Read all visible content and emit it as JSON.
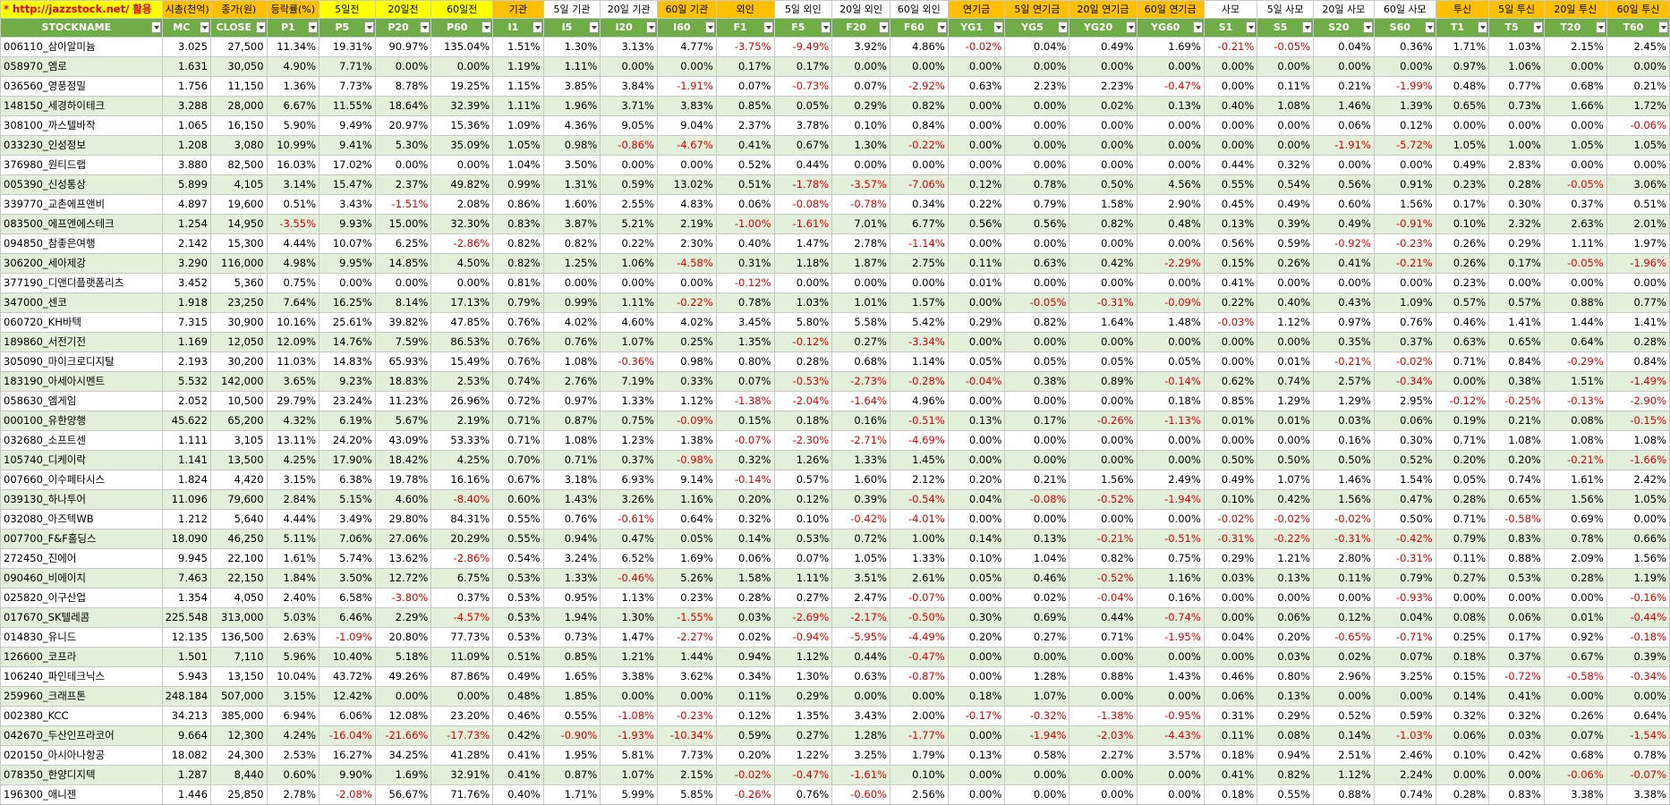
{
  "group_header": [
    "* http://jazzstock.net/ 활용",
    "시총(천억)",
    "종가(원)",
    "등락률(%)",
    "5일전",
    "20일전",
    "60일전",
    "기관",
    "5일 기관",
    "20일 기관",
    "60일 기관",
    "외인",
    "5일 외인",
    "20일 외인",
    "60일 외인",
    "연기금",
    "5일 연기금",
    "20일 연기금",
    "60일 연기금",
    "사모",
    "5일 사모",
    "20일 사모",
    "60일 사모",
    "투신",
    "5일 투신",
    "20일 투신",
    "60일 투신"
  ],
  "column_headers": [
    "STOCKNAME",
    "MC",
    "CLOSE",
    "P1",
    "P5",
    "P20",
    "P60",
    "I1",
    "I5",
    "I20",
    "I60",
    "F1",
    "F5",
    "F20",
    "F60",
    "YG1",
    "YG5",
    "YG20",
    "YG60",
    "S1",
    "S5",
    "S20",
    "S60",
    "T1",
    "T5",
    "T20",
    "T60"
  ],
  "rows": [
    [
      "006110_삼아알미늄",
      "3.025",
      "27,500",
      "11.34%",
      "19.31%",
      "90.97%",
      "135.04%",
      "1.51%",
      "1.30%",
      "3.13%",
      "4.77%",
      "-3.75%",
      "-9.49%",
      "3.92%",
      "4.86%",
      "-0.02%",
      "0.04%",
      "0.49%",
      "1.69%",
      "-0.21%",
      "-0.05%",
      "0.04%",
      "0.36%",
      "1.71%",
      "1.03%",
      "2.15%",
      "2.45%"
    ],
    [
      "058970_엠로",
      "1.631",
      "30,050",
      "4.90%",
      "7.71%",
      "0.00%",
      "0.00%",
      "1.19%",
      "1.11%",
      "0.00%",
      "0.00%",
      "0.17%",
      "0.17%",
      "0.00%",
      "0.00%",
      "0.00%",
      "0.00%",
      "0.00%",
      "0.00%",
      "0.00%",
      "0.00%",
      "0.00%",
      "0.00%",
      "0.97%",
      "1.06%",
      "0.00%",
      "0.00%"
    ],
    [
      "036560_영풍정밀",
      "1.756",
      "11,150",
      "1.36%",
      "7.73%",
      "8.78%",
      "19.25%",
      "1.15%",
      "3.85%",
      "3.84%",
      "-1.91%",
      "0.07%",
      "-0.73%",
      "0.07%",
      "-2.92%",
      "0.63%",
      "2.23%",
      "2.23%",
      "-0.47%",
      "0.00%",
      "0.11%",
      "0.21%",
      "-1.99%",
      "0.48%",
      "0.77%",
      "0.68%",
      "0.21%"
    ],
    [
      "148150_세경하이테크",
      "3.288",
      "28,000",
      "6.67%",
      "11.55%",
      "18.64%",
      "32.39%",
      "1.11%",
      "1.96%",
      "3.71%",
      "3.83%",
      "0.85%",
      "0.05%",
      "0.29%",
      "0.82%",
      "0.00%",
      "0.00%",
      "0.02%",
      "0.13%",
      "0.40%",
      "1.08%",
      "1.46%",
      "1.39%",
      "0.65%",
      "0.73%",
      "1.66%",
      "1.72%"
    ],
    [
      "308100_까스텔바작",
      "1.065",
      "16,150",
      "5.90%",
      "9.49%",
      "20.97%",
      "15.36%",
      "1.09%",
      "4.36%",
      "9.05%",
      "9.04%",
      "2.37%",
      "3.78%",
      "0.10%",
      "0.84%",
      "0.00%",
      "0.00%",
      "0.00%",
      "0.00%",
      "0.00%",
      "0.00%",
      "0.06%",
      "0.12%",
      "0.00%",
      "0.00%",
      "0.00%",
      "-0.06%"
    ],
    [
      "033230_인성정보",
      "1.208",
      "3,080",
      "10.99%",
      "9.41%",
      "5.30%",
      "35.09%",
      "1.05%",
      "0.98%",
      "-0.86%",
      "-4.67%",
      "0.41%",
      "0.67%",
      "1.30%",
      "-0.22%",
      "0.00%",
      "0.00%",
      "0.00%",
      "0.00%",
      "0.00%",
      "0.00%",
      "-1.91%",
      "-5.72%",
      "1.05%",
      "1.00%",
      "1.05%",
      "1.05%"
    ],
    [
      "376980_원티드랩",
      "3.880",
      "82,500",
      "16.03%",
      "17.02%",
      "0.00%",
      "0.00%",
      "1.04%",
      "3.50%",
      "0.00%",
      "0.00%",
      "0.52%",
      "0.44%",
      "0.00%",
      "0.00%",
      "0.00%",
      "0.00%",
      "0.00%",
      "0.00%",
      "0.44%",
      "0.32%",
      "0.00%",
      "0.00%",
      "0.49%",
      "2.83%",
      "0.00%",
      "0.00%"
    ],
    [
      "005390_신성통상",
      "5.899",
      "4,105",
      "3.14%",
      "15.47%",
      "2.37%",
      "49.82%",
      "0.99%",
      "1.31%",
      "0.59%",
      "13.02%",
      "0.51%",
      "-1.78%",
      "-3.57%",
      "-7.06%",
      "0.12%",
      "0.78%",
      "0.50%",
      "4.56%",
      "0.55%",
      "0.54%",
      "0.56%",
      "0.91%",
      "0.23%",
      "0.28%",
      "-0.05%",
      "3.06%"
    ],
    [
      "339770_교촌에프앤비",
      "4.897",
      "19,600",
      "0.51%",
      "3.43%",
      "-1.51%",
      "2.08%",
      "0.86%",
      "1.60%",
      "2.55%",
      "4.83%",
      "0.06%",
      "-0.08%",
      "-0.78%",
      "0.34%",
      "0.22%",
      "0.79%",
      "1.58%",
      "2.90%",
      "0.45%",
      "0.49%",
      "0.60%",
      "1.56%",
      "0.17%",
      "0.30%",
      "0.37%",
      "0.51%"
    ],
    [
      "083500_에프엔에스테크",
      "1.254",
      "14,950",
      "-3.55%",
      "9.93%",
      "15.00%",
      "32.30%",
      "0.83%",
      "3.87%",
      "5.21%",
      "2.19%",
      "-1.00%",
      "-1.61%",
      "7.01%",
      "6.77%",
      "0.56%",
      "0.56%",
      "0.82%",
      "0.48%",
      "0.13%",
      "0.39%",
      "0.49%",
      "-0.91%",
      "0.10%",
      "2.32%",
      "2.63%",
      "2.01%"
    ],
    [
      "094850_참좋은여행",
      "2.142",
      "15,300",
      "4.44%",
      "10.07%",
      "6.25%",
      "-2.86%",
      "0.82%",
      "0.82%",
      "0.22%",
      "2.30%",
      "0.40%",
      "1.47%",
      "2.78%",
      "-1.14%",
      "0.00%",
      "0.00%",
      "0.00%",
      "0.00%",
      "0.56%",
      "0.59%",
      "-0.92%",
      "-0.23%",
      "0.26%",
      "0.29%",
      "1.11%",
      "1.97%"
    ],
    [
      "306200_세아제강",
      "3.290",
      "116,000",
      "4.98%",
      "9.95%",
      "14.85%",
      "4.50%",
      "0.82%",
      "1.25%",
      "1.06%",
      "-4.58%",
      "0.31%",
      "1.18%",
      "1.87%",
      "2.75%",
      "0.11%",
      "0.63%",
      "0.42%",
      "-2.29%",
      "0.15%",
      "0.26%",
      "0.41%",
      "-0.21%",
      "0.26%",
      "0.17%",
      "-0.05%",
      "-1.96%"
    ],
    [
      "377190_디앤디플랫폼리츠",
      "3.452",
      "5,360",
      "0.75%",
      "0.00%",
      "0.00%",
      "0.00%",
      "0.81%",
      "0.00%",
      "0.00%",
      "0.00%",
      "-0.12%",
      "0.00%",
      "0.00%",
      "0.00%",
      "0.01%",
      "0.00%",
      "0.00%",
      "0.00%",
      "0.41%",
      "0.00%",
      "0.00%",
      "0.00%",
      "0.23%",
      "0.00%",
      "0.00%",
      "0.00%"
    ],
    [
      "347000_센코",
      "1.918",
      "23,250",
      "7.64%",
      "16.25%",
      "8.14%",
      "17.13%",
      "0.79%",
      "0.99%",
      "1.11%",
      "-0.22%",
      "0.78%",
      "1.03%",
      "1.01%",
      "1.57%",
      "0.00%",
      "-0.05%",
      "-0.31%",
      "-0.09%",
      "0.22%",
      "0.40%",
      "0.43%",
      "1.09%",
      "0.57%",
      "0.57%",
      "0.88%",
      "0.77%"
    ],
    [
      "060720_KH바텍",
      "7.315",
      "30,900",
      "10.16%",
      "25.61%",
      "39.82%",
      "47.85%",
      "0.76%",
      "4.02%",
      "4.60%",
      "4.02%",
      "3.45%",
      "5.80%",
      "5.58%",
      "5.42%",
      "0.29%",
      "0.82%",
      "1.64%",
      "1.48%",
      "-0.03%",
      "1.12%",
      "0.97%",
      "0.76%",
      "0.46%",
      "1.41%",
      "1.44%",
      "1.41%"
    ],
    [
      "189860_서전기전",
      "1.169",
      "12,050",
      "12.09%",
      "14.76%",
      "7.59%",
      "86.53%",
      "0.76%",
      "0.76%",
      "1.07%",
      "0.25%",
      "1.35%",
      "-0.12%",
      "0.27%",
      "-3.34%",
      "0.00%",
      "0.00%",
      "0.00%",
      "0.00%",
      "0.00%",
      "0.00%",
      "0.35%",
      "0.37%",
      "0.63%",
      "0.65%",
      "0.64%",
      "0.28%"
    ],
    [
      "305090_마이크로디지탈",
      "2.193",
      "30,200",
      "11.03%",
      "14.83%",
      "65.93%",
      "15.49%",
      "0.76%",
      "1.08%",
      "-0.36%",
      "0.98%",
      "0.80%",
      "0.28%",
      "0.68%",
      "1.14%",
      "0.05%",
      "0.05%",
      "0.05%",
      "0.05%",
      "0.00%",
      "0.01%",
      "-0.21%",
      "-0.02%",
      "0.71%",
      "0.84%",
      "-0.29%",
      "0.84%"
    ],
    [
      "183190_아세아시멘트",
      "5.532",
      "142,000",
      "3.65%",
      "9.23%",
      "18.83%",
      "2.53%",
      "0.74%",
      "2.76%",
      "7.19%",
      "0.33%",
      "0.07%",
      "-0.53%",
      "-2.73%",
      "-0.28%",
      "-0.04%",
      "0.38%",
      "0.89%",
      "-0.14%",
      "0.62%",
      "0.74%",
      "2.57%",
      "-0.34%",
      "0.00%",
      "0.38%",
      "1.51%",
      "-1.49%"
    ],
    [
      "058630_엠게임",
      "2.052",
      "10,500",
      "29.79%",
      "23.24%",
      "11.23%",
      "26.96%",
      "0.72%",
      "0.97%",
      "1.33%",
      "1.12%",
      "-1.38%",
      "-2.04%",
      "-1.64%",
      "4.96%",
      "0.00%",
      "0.00%",
      "0.00%",
      "0.18%",
      "0.85%",
      "1.29%",
      "1.29%",
      "2.95%",
      "-0.12%",
      "-0.25%",
      "-0.13%",
      "-2.90%"
    ],
    [
      "000100_유한양행",
      "45.622",
      "65,200",
      "4.32%",
      "6.19%",
      "5.67%",
      "2.19%",
      "0.71%",
      "0.87%",
      "0.75%",
      "-0.09%",
      "0.15%",
      "0.18%",
      "0.16%",
      "-0.51%",
      "0.13%",
      "0.17%",
      "-0.26%",
      "-1.13%",
      "0.01%",
      "0.01%",
      "0.03%",
      "0.06%",
      "0.19%",
      "0.21%",
      "0.08%",
      "-0.15%"
    ],
    [
      "032680_소프트센",
      "1.111",
      "3,105",
      "13.11%",
      "24.20%",
      "43.09%",
      "53.33%",
      "0.71%",
      "1.08%",
      "1.23%",
      "1.38%",
      "-0.07%",
      "-2.30%",
      "-2.71%",
      "-4.69%",
      "0.00%",
      "0.00%",
      "0.00%",
      "0.00%",
      "0.00%",
      "0.00%",
      "0.16%",
      "0.30%",
      "0.71%",
      "1.08%",
      "1.08%",
      "1.08%"
    ],
    [
      "105740_디케이락",
      "1.141",
      "13,500",
      "4.25%",
      "17.90%",
      "18.42%",
      "4.25%",
      "0.70%",
      "0.71%",
      "0.37%",
      "-0.98%",
      "0.32%",
      "1.26%",
      "1.33%",
      "1.45%",
      "0.00%",
      "0.00%",
      "0.00%",
      "0.00%",
      "0.50%",
      "0.50%",
      "0.50%",
      "0.52%",
      "0.20%",
      "0.20%",
      "-0.21%",
      "-1.66%"
    ],
    [
      "007660_이수페타시스",
      "1.824",
      "4,420",
      "3.15%",
      "6.38%",
      "19.78%",
      "16.16%",
      "0.67%",
      "3.18%",
      "6.93%",
      "9.14%",
      "-0.14%",
      "0.57%",
      "1.60%",
      "2.12%",
      "0.20%",
      "0.21%",
      "1.56%",
      "2.49%",
      "0.49%",
      "1.07%",
      "1.46%",
      "1.54%",
      "0.05%",
      "0.74%",
      "1.61%",
      "2.42%"
    ],
    [
      "039130_하나투어",
      "11.096",
      "79,600",
      "2.84%",
      "5.15%",
      "4.60%",
      "-8.40%",
      "0.60%",
      "1.43%",
      "3.26%",
      "1.16%",
      "0.20%",
      "0.12%",
      "0.39%",
      "-0.54%",
      "0.04%",
      "-0.08%",
      "-0.52%",
      "-1.94%",
      "0.10%",
      "0.42%",
      "1.56%",
      "0.47%",
      "0.28%",
      "0.65%",
      "1.56%",
      "1.05%"
    ],
    [
      "032080_아즈텍WB",
      "1.212",
      "5,640",
      "4.44%",
      "3.49%",
      "29.80%",
      "84.31%",
      "0.55%",
      "0.76%",
      "-0.61%",
      "0.64%",
      "0.32%",
      "0.10%",
      "-0.42%",
      "-4.01%",
      "0.00%",
      "0.00%",
      "0.00%",
      "0.00%",
      "-0.02%",
      "-0.02%",
      "-0.02%",
      "0.50%",
      "0.71%",
      "-0.58%",
      "0.69%",
      "0.00%"
    ],
    [
      "007700_F&F홀딩스",
      "18.090",
      "46,250",
      "5.11%",
      "7.06%",
      "27.06%",
      "20.29%",
      "0.55%",
      "0.94%",
      "0.47%",
      "0.05%",
      "0.14%",
      "0.53%",
      "0.72%",
      "1.00%",
      "0.14%",
      "0.13%",
      "-0.21%",
      "-0.51%",
      "-0.31%",
      "-0.22%",
      "-0.31%",
      "-0.42%",
      "0.79%",
      "0.83%",
      "0.78%",
      "0.66%"
    ],
    [
      "272450_진에어",
      "9.945",
      "22,100",
      "1.61%",
      "5.74%",
      "13.62%",
      "-2.86%",
      "0.54%",
      "3.24%",
      "6.52%",
      "1.69%",
      "0.06%",
      "0.07%",
      "1.05%",
      "1.33%",
      "0.10%",
      "1.04%",
      "0.82%",
      "0.75%",
      "0.29%",
      "1.21%",
      "2.80%",
      "-0.31%",
      "0.11%",
      "0.88%",
      "2.09%",
      "1.56%"
    ],
    [
      "090460_비에이치",
      "7.463",
      "22,150",
      "1.84%",
      "3.50%",
      "12.72%",
      "6.75%",
      "0.53%",
      "1.33%",
      "-0.46%",
      "5.26%",
      "1.58%",
      "1.11%",
      "3.51%",
      "2.61%",
      "0.05%",
      "0.46%",
      "-0.52%",
      "1.16%",
      "0.03%",
      "0.13%",
      "0.11%",
      "0.79%",
      "0.27%",
      "0.53%",
      "0.28%",
      "1.19%"
    ],
    [
      "025820_이구산업",
      "1.354",
      "4,050",
      "2.40%",
      "6.58%",
      "-3.80%",
      "0.37%",
      "0.53%",
      "0.95%",
      "1.13%",
      "0.23%",
      "0.28%",
      "0.27%",
      "2.47%",
      "-0.07%",
      "0.00%",
      "0.02%",
      "-0.04%",
      "0.16%",
      "0.00%",
      "0.00%",
      "0.00%",
      "-0.93%",
      "0.00%",
      "0.00%",
      "0.00%",
      "-0.16%"
    ],
    [
      "017670_SK텔레콤",
      "225.548",
      "313,000",
      "5.03%",
      "6.46%",
      "2.29%",
      "-4.57%",
      "0.53%",
      "1.94%",
      "1.30%",
      "-1.55%",
      "0.03%",
      "-2.69%",
      "-2.17%",
      "-0.50%",
      "0.30%",
      "0.69%",
      "0.44%",
      "-0.74%",
      "0.00%",
      "0.06%",
      "0.12%",
      "0.04%",
      "0.08%",
      "0.06%",
      "0.01%",
      "-0.44%"
    ],
    [
      "014830_유니드",
      "12.135",
      "136,500",
      "2.63%",
      "-1.09%",
      "20.80%",
      "77.73%",
      "0.53%",
      "0.73%",
      "1.47%",
      "-2.27%",
      "0.02%",
      "-0.94%",
      "-5.95%",
      "-4.49%",
      "0.20%",
      "0.27%",
      "0.71%",
      "-1.95%",
      "0.04%",
      "0.20%",
      "-0.65%",
      "-0.71%",
      "0.25%",
      "0.17%",
      "0.92%",
      "-0.18%"
    ],
    [
      "126600_코프라",
      "1.501",
      "7,110",
      "5.96%",
      "10.40%",
      "5.18%",
      "11.09%",
      "0.51%",
      "0.85%",
      "1.21%",
      "1.44%",
      "0.94%",
      "1.12%",
      "0.44%",
      "-0.47%",
      "0.00%",
      "0.00%",
      "0.00%",
      "0.00%",
      "0.00%",
      "0.03%",
      "0.02%",
      "0.07%",
      "0.18%",
      "0.37%",
      "0.67%",
      "0.39%"
    ],
    [
      "106240_파인테크닉스",
      "5.943",
      "13,150",
      "10.04%",
      "43.72%",
      "49.26%",
      "87.86%",
      "0.49%",
      "1.65%",
      "3.38%",
      "3.62%",
      "0.34%",
      "1.30%",
      "0.63%",
      "-0.87%",
      "0.00%",
      "1.28%",
      "0.88%",
      "1.43%",
      "0.46%",
      "0.80%",
      "2.96%",
      "3.25%",
      "0.15%",
      "-0.72%",
      "-0.58%",
      "-0.34%"
    ],
    [
      "259960_크래프톤",
      "248.184",
      "507,000",
      "3.15%",
      "12.42%",
      "0.00%",
      "0.00%",
      "0.48%",
      "1.85%",
      "0.00%",
      "0.00%",
      "0.11%",
      "0.29%",
      "0.00%",
      "0.00%",
      "0.18%",
      "1.07%",
      "0.00%",
      "0.00%",
      "0.06%",
      "0.13%",
      "0.00%",
      "0.00%",
      "0.14%",
      "0.41%",
      "0.00%",
      "0.00%"
    ],
    [
      "002380_KCC",
      "34.213",
      "385,000",
      "6.94%",
      "6.06%",
      "12.08%",
      "23.20%",
      "0.46%",
      "0.55%",
      "-1.08%",
      "-0.23%",
      "0.12%",
      "1.35%",
      "3.43%",
      "2.00%",
      "-0.17%",
      "-0.32%",
      "-1.38%",
      "-0.95%",
      "0.31%",
      "0.29%",
      "0.52%",
      "0.59%",
      "0.32%",
      "0.32%",
      "0.26%",
      "0.64%"
    ],
    [
      "042670_두산인프라코어",
      "9.664",
      "12,300",
      "4.24%",
      "-16.04%",
      "-21.66%",
      "-17.73%",
      "0.42%",
      "-0.90%",
      "-1.93%",
      "-10.34%",
      "0.59%",
      "0.27%",
      "1.28%",
      "-1.77%",
      "0.00%",
      "-1.94%",
      "-2.03%",
      "-4.43%",
      "0.11%",
      "0.08%",
      "0.14%",
      "-1.03%",
      "0.06%",
      "0.03%",
      "0.07%",
      "-1.54%"
    ],
    [
      "020150_아시아나항공",
      "18.082",
      "24,300",
      "2.53%",
      "16.27%",
      "34.25%",
      "41.28%",
      "0.41%",
      "1.95%",
      "5.81%",
      "7.73%",
      "0.20%",
      "1.22%",
      "3.25%",
      "1.79%",
      "0.13%",
      "0.58%",
      "2.27%",
      "3.57%",
      "0.18%",
      "0.94%",
      "2.51%",
      "2.46%",
      "0.10%",
      "0.42%",
      "0.68%",
      "0.78%"
    ],
    [
      "078350_한양디지텍",
      "1.287",
      "8,440",
      "0.60%",
      "9.90%",
      "1.69%",
      "32.91%",
      "0.41%",
      "0.87%",
      "1.07%",
      "2.15%",
      "-0.02%",
      "-0.47%",
      "-1.61%",
      "0.10%",
      "0.00%",
      "0.00%",
      "0.00%",
      "0.00%",
      "0.41%",
      "0.82%",
      "1.12%",
      "2.24%",
      "0.00%",
      "0.00%",
      "-0.06%",
      "-0.07%"
    ],
    [
      "196300_애니젠",
      "1.446",
      "25,850",
      "2.78%",
      "-2.08%",
      "56.67%",
      "71.76%",
      "0.40%",
      "1.71%",
      "5.99%",
      "5.85%",
      "-0.26%",
      "0.76%",
      "-0.60%",
      "2.56%",
      "0.00%",
      "0.00%",
      "0.00%",
      "0.00%",
      "0.18%",
      "0.55%",
      "0.88%",
      "0.74%",
      "0.28%",
      "0.83%",
      "3.38%",
      "3.38%"
    ]
  ]
}
